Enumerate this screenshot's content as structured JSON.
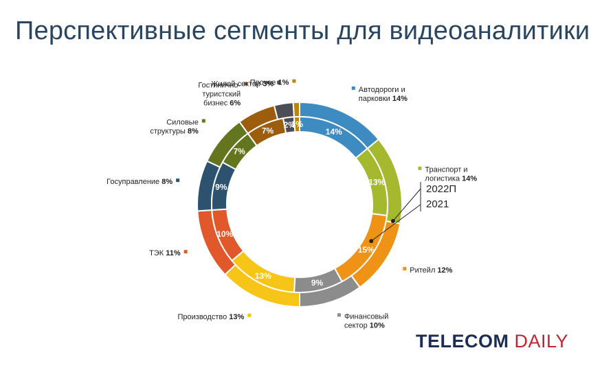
{
  "page": {
    "title": "Перспективные сегменты для видеоаналитики"
  },
  "chart_data": {
    "type": "donut",
    "title": "Перспективные сегменты для видеоаналитики",
    "rings": [
      {
        "name": "2022П",
        "position": "outer"
      },
      {
        "name": "2021",
        "position": "inner"
      }
    ],
    "categories": [
      {
        "id": "roads",
        "label": [
          "Автодороги и",
          "парковки"
        ],
        "share_label": "14%",
        "color": "#3d8bc1"
      },
      {
        "id": "transport",
        "label": [
          "Транспорт и",
          "логистика"
        ],
        "share_label": "14%",
        "color": "#a5b92f"
      },
      {
        "id": "retail",
        "label": [
          "Ритейл"
        ],
        "share_label": "12%",
        "color": "#ef9316"
      },
      {
        "id": "finance",
        "label": [
          "Финансовый",
          "сектор"
        ],
        "share_label": "10%",
        "color": "#8c8c8c"
      },
      {
        "id": "production",
        "label": [
          "Производство"
        ],
        "share_label": "13%",
        "color": "#f6c518"
      },
      {
        "id": "energy",
        "label": [
          "ТЭК"
        ],
        "share_label": "11%",
        "color": "#e1582a"
      },
      {
        "id": "government",
        "label": [
          "Госуправление"
        ],
        "share_label": "8%",
        "color": "#2c526f"
      },
      {
        "id": "security",
        "label": [
          "Силовые",
          "структуры"
        ],
        "share_label": "8%",
        "color": "#647520"
      },
      {
        "id": "hotels",
        "label": [
          "Гостинично-",
          "туристский",
          "бизнес"
        ],
        "share_label": "6%",
        "color": "#9c5d0c"
      },
      {
        "id": "housing",
        "label": [
          "Жилой сектор"
        ],
        "share_label": "3%",
        "color": "#4d4d55"
      },
      {
        "id": "other",
        "label": [
          "Прочее"
        ],
        "share_label": "1%",
        "color": "#b8860b"
      }
    ],
    "series": [
      {
        "name": "2022П",
        "values": [
          14,
          14,
          12,
          10,
          13,
          11,
          8,
          8,
          6,
          3,
          1
        ]
      },
      {
        "name": "2021",
        "values": [
          14,
          13,
          15,
          9,
          13,
          10,
          9,
          7,
          7,
          2,
          1
        ]
      }
    ],
    "inner_labels": [
      "14%",
      "13%",
      "15%",
      "9%",
      "13%",
      "10%",
      "9%",
      "7%",
      "7%",
      "2%",
      "1%"
    ],
    "legend": "labels around the ring"
  },
  "logo": {
    "part1": "TELECOM",
    "part2": "DAILY"
  }
}
